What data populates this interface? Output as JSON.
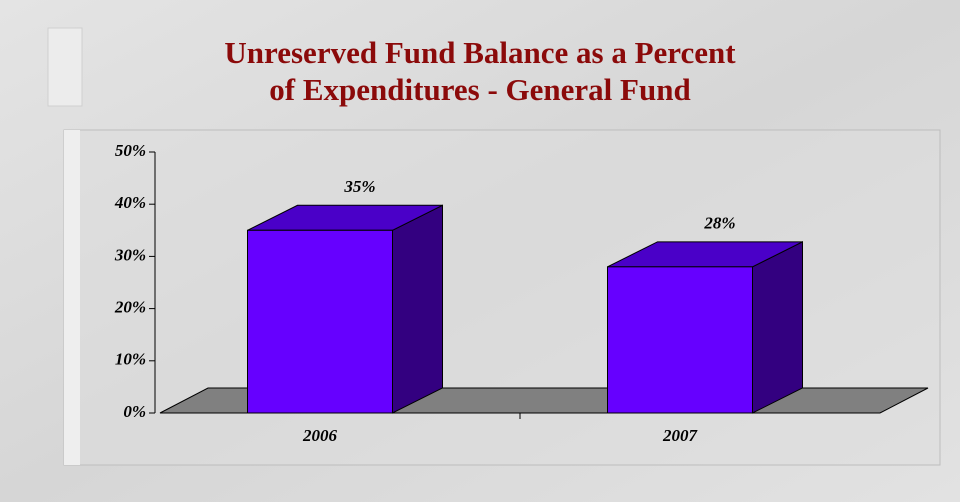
{
  "chart_data": {
    "type": "bar3d",
    "title": [
      "Unreserved Fund Balance as a Percent",
      "of Expenditures - General Fund"
    ],
    "categories": [
      "2006",
      "2007"
    ],
    "values": [
      35,
      28
    ],
    "value_labels": [
      "35%",
      "28%"
    ],
    "color": "#6600ff",
    "ylim": [
      0,
      50
    ],
    "yticks": [
      {
        "value": 0,
        "label": "0%"
      },
      {
        "value": 10,
        "label": "10%"
      },
      {
        "value": 20,
        "label": "20%"
      },
      {
        "value": 30,
        "label": "30%"
      },
      {
        "value": 40,
        "label": "40%"
      },
      {
        "value": 50,
        "label": "50%"
      }
    ],
    "grid": false
  }
}
